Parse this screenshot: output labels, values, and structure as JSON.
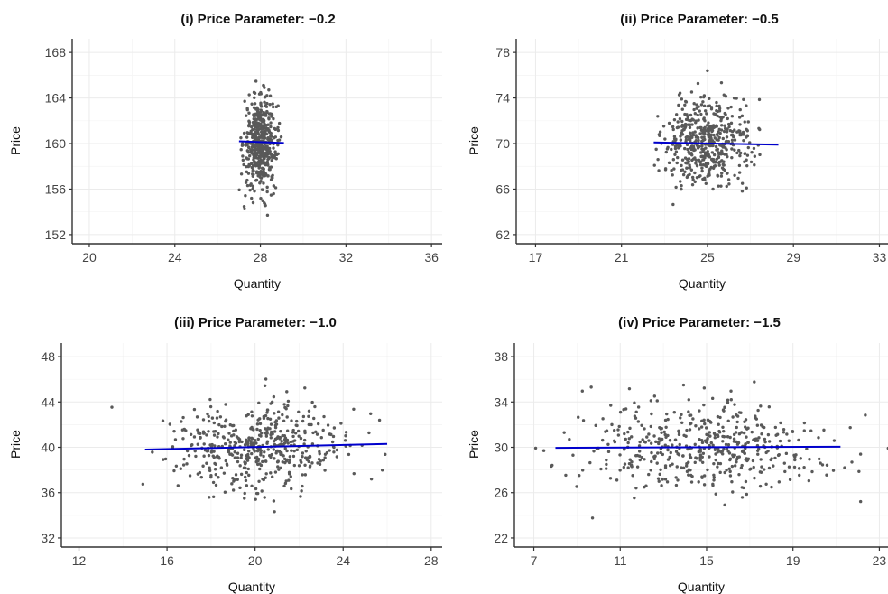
{
  "chart_data": [
    {
      "type": "scatter",
      "panel": "i",
      "title": "(i)  Price Parameter: −0.2",
      "xlabel": "Quantity",
      "ylabel": "Price",
      "xlim": [
        19.2,
        36.5
      ],
      "ylim": [
        151.2,
        169.2
      ],
      "xticks": [
        20,
        24,
        28,
        32,
        36
      ],
      "yticks": [
        152,
        156,
        160,
        164,
        168
      ],
      "xticklabels": [
        "20",
        "24",
        "28",
        "32",
        "36"
      ],
      "yticklabels": [
        "152",
        "156",
        "160",
        "164",
        "168"
      ],
      "grid": true,
      "points": {
        "n": 500,
        "x_mean": 28.0,
        "x_sd": 0.38,
        "y_mean": 160.0,
        "y_sd": 2.0,
        "color": "#595959"
      },
      "fit_line": {
        "x": [
          27.0,
          29.1
        ],
        "y": [
          160.2,
          160.05
        ],
        "color": "#0000cc"
      }
    },
    {
      "type": "scatter",
      "panel": "ii",
      "title": "(ii)  Price Parameter: −0.5",
      "xlabel": "Quantity",
      "ylabel": "Price",
      "xlim": [
        16.1,
        33.4
      ],
      "ylim": [
        61.2,
        79.2
      ],
      "xticks": [
        17,
        21,
        25,
        29,
        33
      ],
      "yticks": [
        62,
        66,
        70,
        74,
        78
      ],
      "xticklabels": [
        "17",
        "21",
        "25",
        "29",
        "33"
      ],
      "yticklabels": [
        "62",
        "66",
        "70",
        "74",
        "78"
      ],
      "grid": true,
      "points": {
        "n": 500,
        "x_mean": 25.0,
        "x_sd": 1.0,
        "y_mean": 70.0,
        "y_sd": 2.0,
        "color": "#595959"
      },
      "fit_line": {
        "x": [
          22.5,
          28.3
        ],
        "y": [
          70.1,
          69.9
        ],
        "color": "#0000cc"
      }
    },
    {
      "type": "scatter",
      "panel": "iii",
      "title": "(iii)  Price Parameter: −1.0",
      "xlabel": "Quantity",
      "ylabel": "Price",
      "xlim": [
        11.2,
        28.5
      ],
      "ylim": [
        31.2,
        49.2
      ],
      "xticks": [
        12,
        16,
        20,
        24,
        28
      ],
      "yticks": [
        32,
        36,
        40,
        44,
        48
      ],
      "xticklabels": [
        "12",
        "16",
        "20",
        "24",
        "28"
      ],
      "yticklabels": [
        "32",
        "36",
        "40",
        "44",
        "48"
      ],
      "grid": true,
      "points": {
        "n": 500,
        "x_mean": 20.0,
        "x_sd": 2.0,
        "y_mean": 40.0,
        "y_sd": 2.0,
        "color": "#595959"
      },
      "fit_line": {
        "x": [
          15.0,
          26.0
        ],
        "y": [
          39.8,
          40.3
        ],
        "color": "#0000cc"
      }
    },
    {
      "type": "scatter",
      "panel": "iv",
      "title": "(iv)  Price Parameter: −1.5",
      "xlabel": "Quantity",
      "ylabel": "Price",
      "xlim": [
        6.1,
        23.4
      ],
      "ylim": [
        21.2,
        39.2
      ],
      "xticks": [
        7,
        11,
        15,
        19,
        23
      ],
      "yticks": [
        22,
        26,
        30,
        34,
        38
      ],
      "xticklabels": [
        "7",
        "11",
        "15",
        "19",
        "23"
      ],
      "yticklabels": [
        "22",
        "26",
        "30",
        "34",
        "38"
      ],
      "grid": true,
      "points": {
        "n": 500,
        "x_mean": 15.0,
        "x_sd": 2.9,
        "y_mean": 30.0,
        "y_sd": 2.0,
        "color": "#595959"
      },
      "fit_line": {
        "x": [
          8.0,
          21.2
        ],
        "y": [
          29.95,
          30.05
        ],
        "color": "#0000cc"
      }
    }
  ]
}
